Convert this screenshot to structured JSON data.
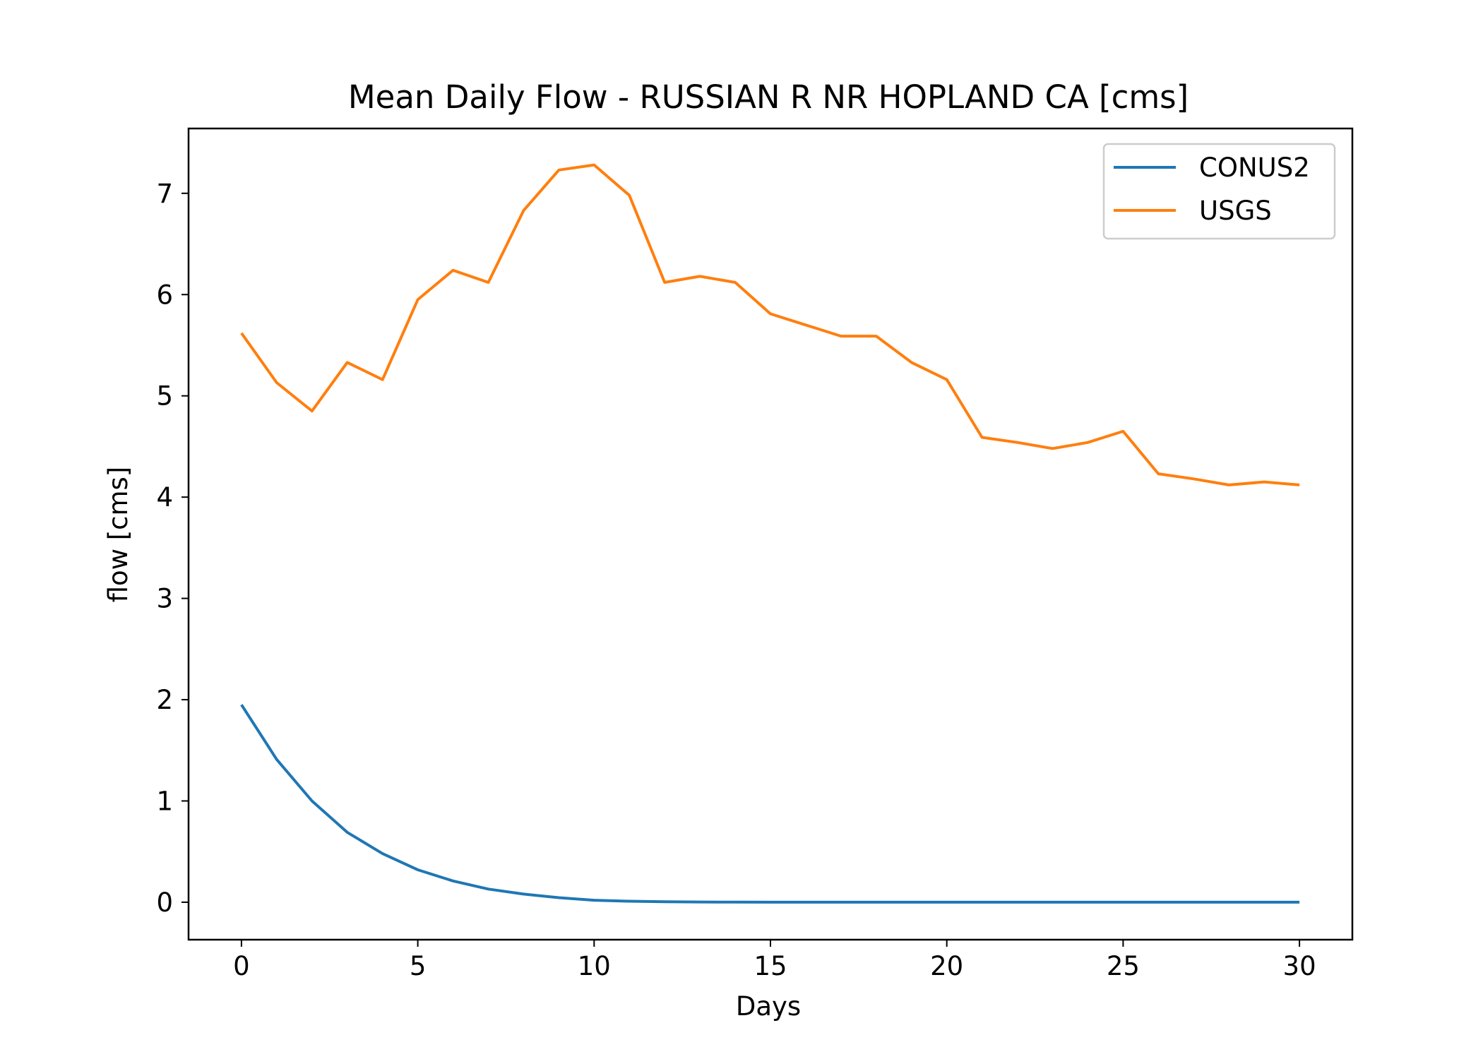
{
  "chart_data": {
    "type": "line",
    "title": "Mean Daily Flow - RUSSIAN R NR HOPLAND CA [cms]",
    "xlabel": "Days",
    "ylabel": "flow [cms]",
    "xlim": [
      -1.5,
      31.5
    ],
    "ylim": [
      -0.37,
      7.64
    ],
    "xticks": [
      0,
      5,
      10,
      15,
      20,
      25,
      30
    ],
    "yticks": [
      0,
      1,
      2,
      3,
      4,
      5,
      6,
      7
    ],
    "grid": false,
    "legend_position": "top-right",
    "x": [
      0,
      1,
      2,
      3,
      4,
      5,
      6,
      7,
      8,
      9,
      10,
      11,
      12,
      13,
      14,
      15,
      16,
      17,
      18,
      19,
      20,
      21,
      22,
      23,
      24,
      25,
      26,
      27,
      28,
      29,
      30
    ],
    "series": [
      {
        "name": "CONUS2",
        "color": "#1f77b4",
        "values": [
          1.95,
          1.41,
          1.0,
          0.69,
          0.48,
          0.32,
          0.21,
          0.13,
          0.08,
          0.045,
          0.02,
          0.01,
          0.005,
          0.002,
          0.001,
          0.0,
          0.0,
          0.0,
          0.0,
          0.0,
          0.0,
          0.0,
          0.0,
          0.0,
          0.0,
          0.0,
          0.0,
          0.0,
          0.0,
          0.0,
          0.0
        ]
      },
      {
        "name": "USGS",
        "color": "#ff7f0e",
        "values": [
          5.62,
          5.13,
          4.85,
          5.33,
          5.16,
          5.95,
          6.24,
          6.12,
          6.83,
          7.23,
          7.28,
          6.98,
          6.12,
          6.18,
          6.12,
          5.81,
          5.7,
          5.59,
          5.59,
          5.33,
          5.16,
          4.59,
          4.54,
          4.48,
          4.54,
          4.65,
          4.23,
          4.18,
          4.12,
          4.15,
          4.12
        ]
      }
    ]
  }
}
